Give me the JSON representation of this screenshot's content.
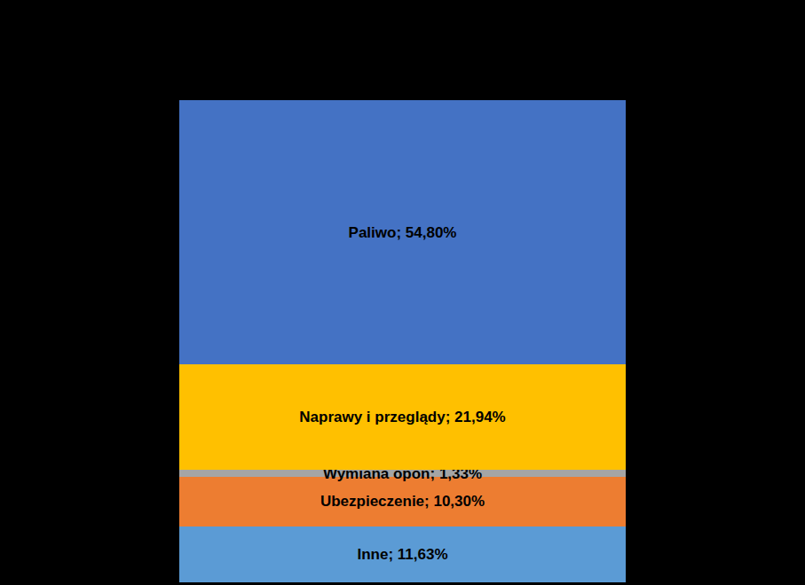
{
  "chart_data": {
    "type": "bar",
    "stacked": true,
    "data_labels": true,
    "tick_labels": false,
    "grid": false,
    "categories": [
      null
    ],
    "ylim": [
      0,
      100
    ],
    "series": [
      {
        "name": "Inne",
        "color": "#5b9bd5",
        "values": [
          11.63
        ],
        "value_labels": [
          "Inne; 11,63%"
        ]
      },
      {
        "name": "Ubezpieczenie",
        "color": "#ed7d31",
        "values": [
          10.3
        ],
        "value_labels": [
          "Ubezpieczenie; 10,30%"
        ]
      },
      {
        "name": "Wymiana opon",
        "color": "#a5a5a5",
        "values": [
          1.33
        ],
        "value_labels": [
          "Wymiana opon; 1,33%"
        ]
      },
      {
        "name": "Naprawy i przeglądy",
        "color": "#ffc000",
        "values": [
          21.94
        ],
        "value_labels": [
          "Naprawy i przeglądy; 21,94%"
        ]
      },
      {
        "name": "Paliwo",
        "color": "#4472c4",
        "values": [
          54.8
        ],
        "value_labels": [
          "Paliwo; 54,80%"
        ]
      }
    ]
  }
}
